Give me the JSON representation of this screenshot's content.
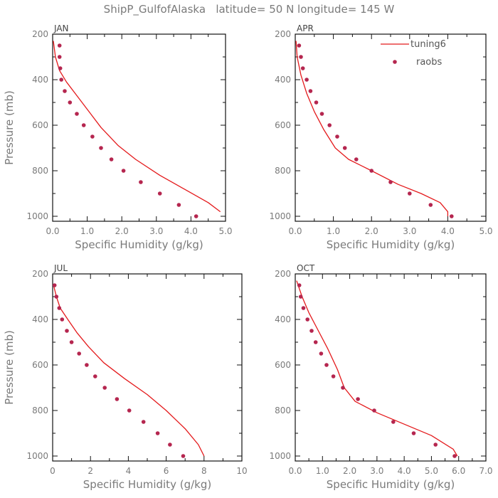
{
  "title": "ShipP_GulfofAlaska   latitude= 50 N longitude= 145 W",
  "legend": {
    "line_label": "tuning6",
    "dot_label": "raobs"
  },
  "colors": {
    "line": "#e41a1c",
    "dots": "#b5264f",
    "axis": "#111111",
    "text": "#7a7a7a"
  },
  "chart_data": [
    {
      "type": "line",
      "panel": "JAN",
      "xlabel": "Specific Humidity (g/kg)",
      "ylabel": "Pressure (mb)",
      "xlim": [
        0,
        5
      ],
      "ylim": [
        200,
        1030
      ],
      "y_inverted": true,
      "xticks": [
        "0.0",
        "1.0",
        "2.0",
        "3.0",
        "4.0",
        "5.0"
      ],
      "xtick_values": [
        0,
        1,
        2,
        3,
        4,
        5
      ],
      "yticks": [
        200,
        400,
        600,
        800,
        1000
      ],
      "series": [
        {
          "name": "tuning6",
          "kind": "line",
          "points": [
            [
              0.02,
              230
            ],
            [
              0.08,
              300
            ],
            [
              0.2,
              360
            ],
            [
              0.4,
              410
            ],
            [
              0.7,
              470
            ],
            [
              1.0,
              530
            ],
            [
              1.4,
              610
            ],
            [
              1.9,
              690
            ],
            [
              2.4,
              750
            ],
            [
              3.1,
              820
            ],
            [
              3.8,
              880
            ],
            [
              4.5,
              940
            ],
            [
              4.85,
              980
            ]
          ]
        },
        {
          "name": "raobs",
          "kind": "scatter",
          "points": [
            [
              0.2,
              250
            ],
            [
              0.2,
              300
            ],
            [
              0.22,
              350
            ],
            [
              0.25,
              400
            ],
            [
              0.35,
              450
            ],
            [
              0.5,
              500
            ],
            [
              0.7,
              550
            ],
            [
              0.9,
              600
            ],
            [
              1.15,
              650
            ],
            [
              1.4,
              700
            ],
            [
              1.7,
              750
            ],
            [
              2.05,
              800
            ],
            [
              2.55,
              850
            ],
            [
              3.1,
              900
            ],
            [
              3.65,
              950
            ],
            [
              4.15,
              1000
            ]
          ]
        }
      ]
    },
    {
      "type": "line",
      "panel": "APR",
      "xlabel": "Specific Humidity (g/kg)",
      "ylabel": "",
      "xlim": [
        0,
        5
      ],
      "ylim": [
        200,
        1030
      ],
      "y_inverted": true,
      "xticks": [
        "0.0",
        "1.0",
        "2.0",
        "3.0",
        "4.0",
        "5.0"
      ],
      "xtick_values": [
        0,
        1,
        2,
        3,
        4,
        5
      ],
      "yticks": [
        200,
        400,
        600,
        800,
        1000
      ],
      "series": [
        {
          "name": "tuning6",
          "kind": "line",
          "points": [
            [
              0.02,
              230
            ],
            [
              0.05,
              300
            ],
            [
              0.15,
              380
            ],
            [
              0.3,
              460
            ],
            [
              0.5,
              540
            ],
            [
              0.75,
              620
            ],
            [
              1.05,
              700
            ],
            [
              1.4,
              750
            ],
            [
              2.0,
              800
            ],
            [
              2.7,
              860
            ],
            [
              3.3,
              900
            ],
            [
              3.8,
              940
            ],
            [
              4.0,
              980
            ],
            [
              4.0,
              1000
            ]
          ]
        },
        {
          "name": "raobs",
          "kind": "scatter",
          "points": [
            [
              0.1,
              250
            ],
            [
              0.15,
              300
            ],
            [
              0.2,
              350
            ],
            [
              0.3,
              400
            ],
            [
              0.4,
              450
            ],
            [
              0.55,
              500
            ],
            [
              0.7,
              550
            ],
            [
              0.9,
              600
            ],
            [
              1.1,
              650
            ],
            [
              1.3,
              700
            ],
            [
              1.6,
              750
            ],
            [
              2.0,
              800
            ],
            [
              2.5,
              850
            ],
            [
              3.0,
              900
            ],
            [
              3.55,
              950
            ],
            [
              4.1,
              1000
            ]
          ]
        }
      ]
    },
    {
      "type": "line",
      "panel": "JUL",
      "xlabel": "Specific Humidity (g/kg)",
      "ylabel": "Pressure (mb)",
      "xlim": [
        0,
        10
      ],
      "ylim": [
        200,
        1030
      ],
      "y_inverted": true,
      "xticks": [
        "0",
        "2",
        "4",
        "6",
        "8",
        "10"
      ],
      "xtick_values": [
        0,
        2,
        4,
        6,
        8,
        10
      ],
      "yticks": [
        200,
        400,
        600,
        800,
        1000
      ],
      "series": [
        {
          "name": "tuning6",
          "kind": "line",
          "points": [
            [
              0.05,
              250
            ],
            [
              0.2,
              300
            ],
            [
              0.4,
              350
            ],
            [
              0.8,
              400
            ],
            [
              1.3,
              460
            ],
            [
              1.9,
              520
            ],
            [
              2.7,
              590
            ],
            [
              3.8,
              660
            ],
            [
              5.0,
              730
            ],
            [
              6.0,
              800
            ],
            [
              7.0,
              880
            ],
            [
              7.7,
              950
            ],
            [
              8.0,
              1000
            ]
          ]
        },
        {
          "name": "raobs",
          "kind": "scatter",
          "points": [
            [
              0.1,
              250
            ],
            [
              0.2,
              300
            ],
            [
              0.35,
              350
            ],
            [
              0.5,
              400
            ],
            [
              0.75,
              450
            ],
            [
              1.0,
              500
            ],
            [
              1.4,
              550
            ],
            [
              1.8,
              600
            ],
            [
              2.25,
              650
            ],
            [
              2.75,
              700
            ],
            [
              3.4,
              750
            ],
            [
              4.05,
              800
            ],
            [
              4.8,
              850
            ],
            [
              5.55,
              900
            ],
            [
              6.2,
              950
            ],
            [
              6.9,
              1000
            ]
          ]
        }
      ]
    },
    {
      "type": "line",
      "panel": "OCT",
      "xlabel": "Specific Humidity (g/kg)",
      "ylabel": "",
      "xlim": [
        0,
        7
      ],
      "ylim": [
        200,
        1030
      ],
      "y_inverted": true,
      "xticks": [
        "0.0",
        "1.0",
        "2.0",
        "3.0",
        "4.0",
        "5.0",
        "6.0",
        "7.0"
      ],
      "xtick_values": [
        0,
        1,
        2,
        3,
        4,
        5,
        6,
        7
      ],
      "yticks": [
        200,
        400,
        600,
        800,
        1000
      ],
      "series": [
        {
          "name": "tuning6",
          "kind": "line",
          "points": [
            [
              0.05,
              230
            ],
            [
              0.25,
              300
            ],
            [
              0.5,
              370
            ],
            [
              0.85,
              450
            ],
            [
              1.2,
              530
            ],
            [
              1.55,
              620
            ],
            [
              1.8,
              700
            ],
            [
              2.2,
              760
            ],
            [
              3.0,
              810
            ],
            [
              4.0,
              860
            ],
            [
              5.0,
              910
            ],
            [
              5.8,
              970
            ],
            [
              5.95,
              1000
            ]
          ]
        },
        {
          "name": "raobs",
          "kind": "scatter",
          "points": [
            [
              0.15,
              250
            ],
            [
              0.2,
              300
            ],
            [
              0.3,
              350
            ],
            [
              0.45,
              400
            ],
            [
              0.6,
              450
            ],
            [
              0.75,
              500
            ],
            [
              0.95,
              550
            ],
            [
              1.15,
              600
            ],
            [
              1.4,
              650
            ],
            [
              1.75,
              700
            ],
            [
              2.3,
              750
            ],
            [
              2.9,
              800
            ],
            [
              3.6,
              850
            ],
            [
              4.35,
              900
            ],
            [
              5.15,
              950
            ],
            [
              5.85,
              1000
            ]
          ]
        }
      ]
    }
  ]
}
